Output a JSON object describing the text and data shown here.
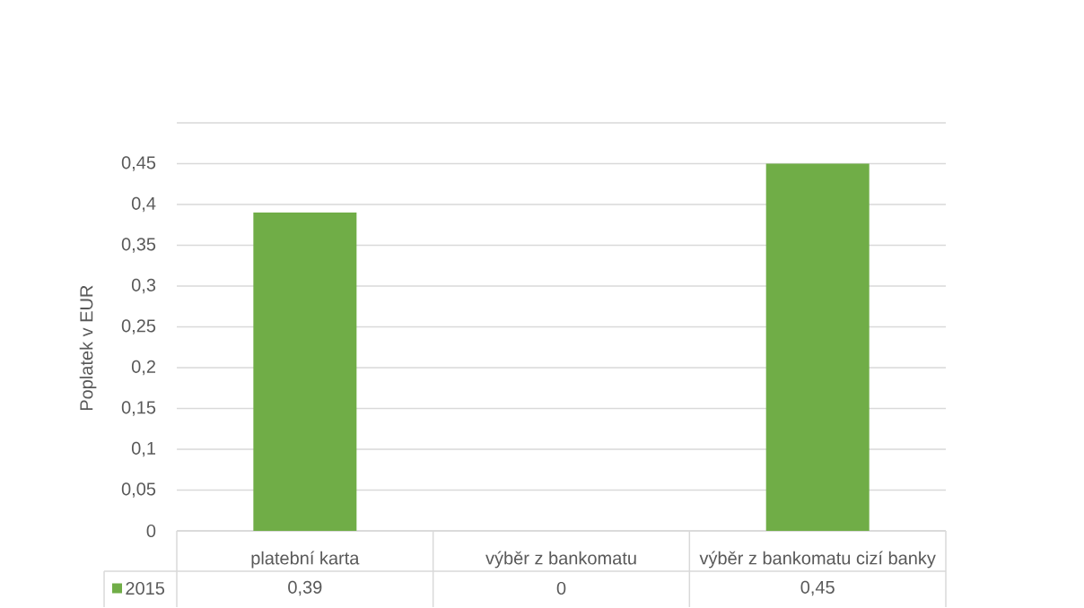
{
  "chart_data": {
    "type": "bar",
    "ylabel": "Poplatek v EUR",
    "categories": [
      "platební karta",
      "výběr z bankomatu",
      "výběr z bankomatu cizí banky"
    ],
    "series": [
      {
        "name": "2015",
        "color": "#70ad47",
        "values": [
          0.39,
          0,
          0.45
        ],
        "value_labels": [
          "0,39",
          "0",
          "0,45"
        ]
      }
    ],
    "ylim": [
      0,
      0.5
    ],
    "yticks": [
      0,
      {
        "value": 0.05,
        "label": "0,05"
      },
      {
        "value": 0.1,
        "label": "0,1"
      },
      {
        "value": 0.15,
        "label": "0,15"
      },
      {
        "value": 0.2,
        "label": "0,2"
      },
      {
        "value": 0.25,
        "label": "0,25"
      },
      {
        "value": 0.3,
        "label": "0,3"
      },
      {
        "value": 0.35,
        "label": "0,35"
      },
      {
        "value": 0.4,
        "label": "0,4"
      },
      {
        "value": 0.45,
        "label": "0,45"
      },
      {
        "value": 0.5,
        "label": null
      }
    ],
    "grid": "y",
    "legend": "bottom left"
  }
}
